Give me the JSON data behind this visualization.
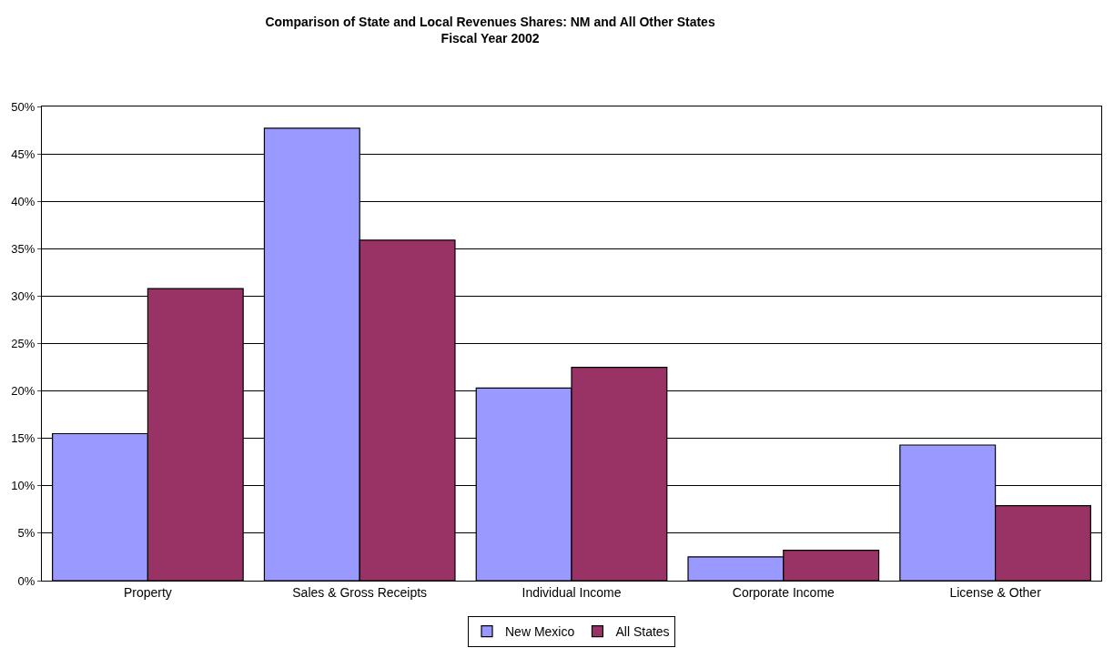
{
  "chart_data": {
    "type": "bar",
    "title": "Comparison of State and Local Revenues Shares: NM and All Other States\nFiscal Year 2002",
    "categories": [
      "Property",
      "Sales & Gross Receipts",
      "Individual Income",
      "Corporate Income",
      "License & Other"
    ],
    "series": [
      {
        "name": "New Mexico",
        "color": "#9999ff",
        "values": [
          15.5,
          47.7,
          20.3,
          2.5,
          14.3
        ]
      },
      {
        "name": "All States",
        "color": "#993366",
        "values": [
          30.8,
          35.9,
          22.5,
          3.2,
          7.9
        ]
      }
    ],
    "ylim": [
      0,
      50
    ],
    "yticks": [
      {
        "value": 0,
        "label": "0%"
      },
      {
        "value": 5,
        "label": "5%"
      },
      {
        "value": 10,
        "label": "10%"
      },
      {
        "value": 15,
        "label": "15%"
      },
      {
        "value": 20,
        "label": "20%"
      },
      {
        "value": 25,
        "label": "25%"
      },
      {
        "value": 30,
        "label": "30%"
      },
      {
        "value": 35,
        "label": "35%"
      },
      {
        "value": 40,
        "label": "40%"
      },
      {
        "value": 45,
        "label": "45%"
      },
      {
        "value": 50,
        "label": "50%"
      }
    ],
    "grid": "y",
    "legend": "bottom"
  }
}
